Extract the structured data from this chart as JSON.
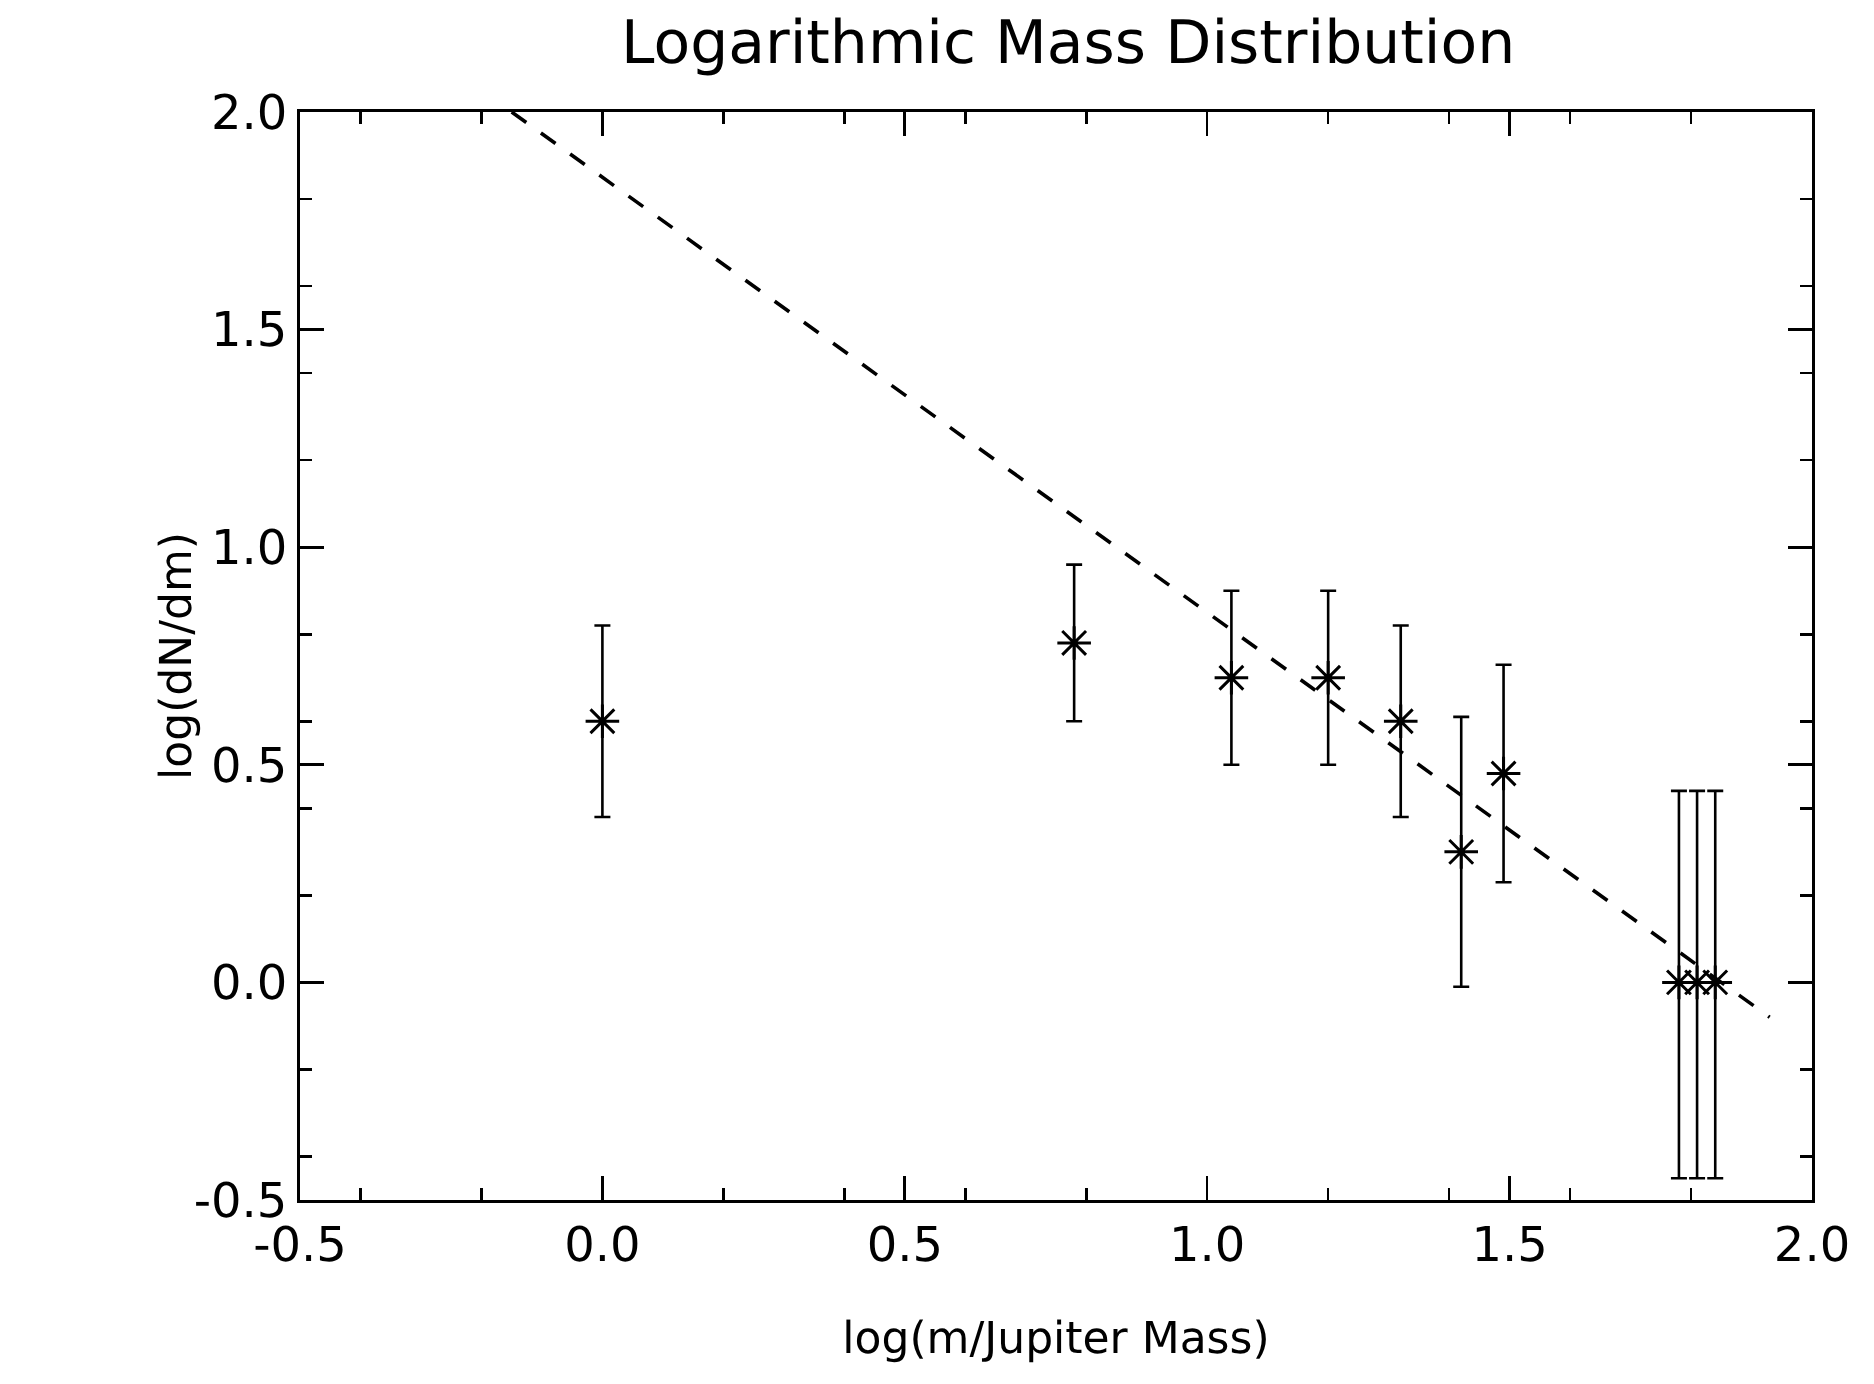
{
  "chart_data": {
    "type": "scatter",
    "title": "Logarithmic Mass Distribution",
    "xlabel": "log(m/Jupiter Mass)",
    "ylabel": "log(dN/dm)",
    "xlim": [
      -0.5,
      2.0
    ],
    "ylim": [
      -0.5,
      2.0
    ],
    "xticks": [
      {
        "value": -0.5,
        "label": "-0.5"
      },
      {
        "value": 0,
        "label": "0.0"
      },
      {
        "value": 0.5,
        "label": "0.5"
      },
      {
        "value": 1,
        "label": "1.0"
      },
      {
        "value": 1.5,
        "label": "1.5"
      },
      {
        "value": 2,
        "label": "2.0"
      }
    ],
    "yticks": [
      {
        "value": -0.5,
        "label": "-0.5"
      },
      {
        "value": 0,
        "label": "0.0"
      },
      {
        "value": 0.5,
        "label": "0.5"
      },
      {
        "value": 1,
        "label": "1.0"
      },
      {
        "value": 1.5,
        "label": "1.5"
      },
      {
        "value": 2,
        "label": "2.0"
      }
    ],
    "grid": false,
    "series": [
      {
        "color": "#000000",
        "marker": "cross",
        "x": [
          0,
          0.78,
          1.04,
          1.2,
          1.32,
          1.42,
          1.49,
          1.78,
          1.81,
          1.84
        ],
        "values": [
          0.6,
          0.78,
          0.7,
          0.7,
          0.6,
          0.3,
          0.48,
          0,
          0,
          0
        ],
        "errors": [
          [
            0.38,
            0.82
          ],
          [
            0.6,
            0.96
          ],
          [
            0.5,
            0.9
          ],
          [
            0.5,
            0.9
          ],
          [
            0.38,
            0.82
          ],
          [
            -0.01,
            0.61
          ],
          [
            0.23,
            0.73
          ],
          [
            -0.45,
            0.44
          ],
          [
            -0.45,
            0.44
          ],
          [
            -0.45,
            0.44
          ]
        ]
      },
      {
        "type": "line",
        "color": "#000000",
        "line_style": "dashed",
        "marker": "none",
        "x": [
          -0.15,
          1.93
        ],
        "values": [
          2.0,
          -0.08
        ]
      }
    ]
  }
}
